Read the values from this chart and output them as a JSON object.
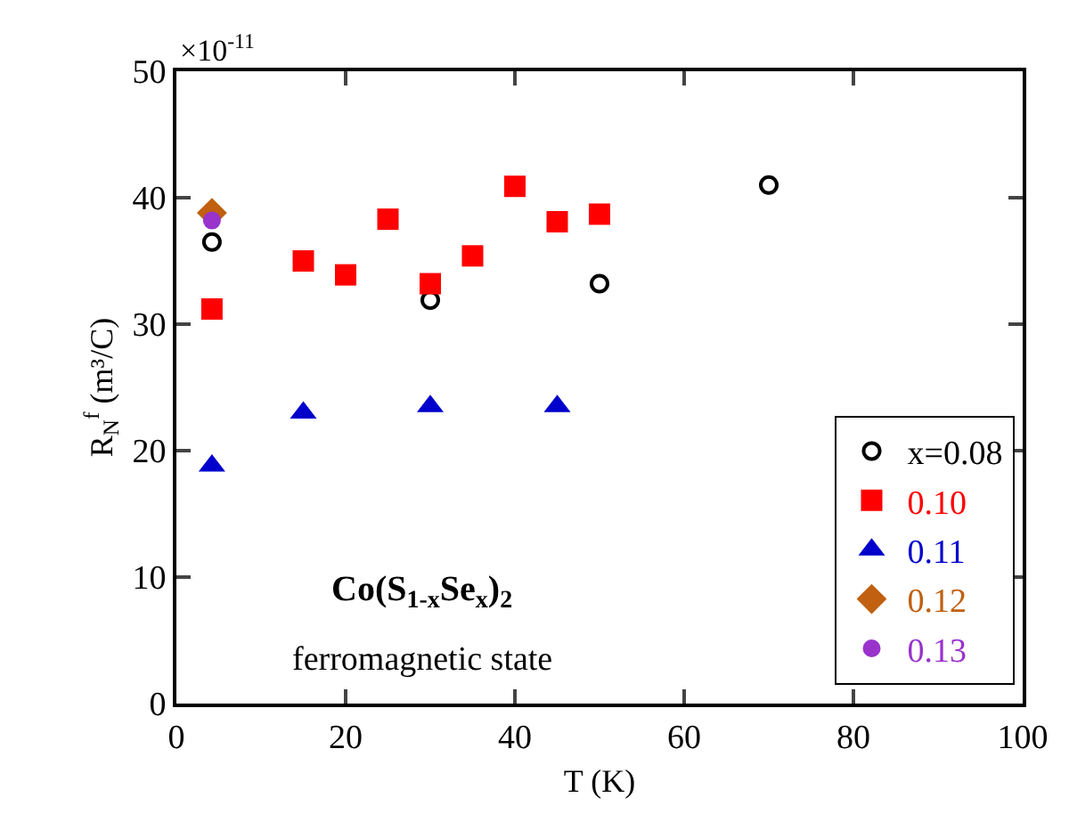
{
  "chart_data": {
    "type": "scatter",
    "xlabel": "T (K)",
    "ylabel": "R$_{N}$$^{f}$ (m³/C)",
    "annotations": [
      "×10$^{-11}$",
      "Co(S$_{1-x}$Se$_{x}$)$_{2}$",
      "ferromagnetic state"
    ],
    "xlim": [
      0,
      100
    ],
    "xticks": [
      0,
      20,
      40,
      60,
      80,
      100
    ],
    "ylim": [
      0,
      50
    ],
    "yticks": [
      0,
      10,
      20,
      30,
      40,
      50
    ],
    "legend": "bottom right",
    "series": [
      {
        "name": "x=0.08",
        "color": "#000000",
        "marker": "circle-open",
        "x": [
          4.2,
          30,
          50,
          70
        ],
        "values": [
          36.5,
          31.9,
          33.2,
          41.0
        ]
      },
      {
        "name": "0.10",
        "color": "#ff0000",
        "marker": "square",
        "x": [
          4.2,
          15,
          20,
          25,
          30,
          35,
          40,
          45,
          50
        ],
        "values": [
          31.2,
          35.0,
          33.9,
          38.3,
          33.2,
          35.4,
          40.9,
          38.1,
          38.7
        ]
      },
      {
        "name": "0.11",
        "color": "#0000cc",
        "marker": "triangle",
        "x": [
          4.2,
          15,
          30,
          45
        ],
        "values": [
          18.8,
          23.0,
          23.5,
          23.5
        ]
      },
      {
        "name": "0.12",
        "color": "#c06010",
        "marker": "diamond",
        "x": [
          4.2
        ],
        "values": [
          38.8
        ]
      },
      {
        "name": "0.13",
        "color": "#9933cc",
        "marker": "circle",
        "x": [
          4.2
        ],
        "values": [
          38.2
        ]
      }
    ]
  }
}
